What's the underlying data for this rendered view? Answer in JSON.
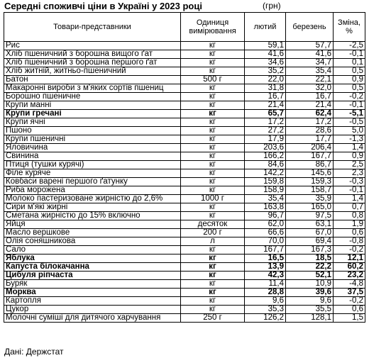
{
  "title": "Середні споживчі ціни в Україні у 2023 році",
  "unit": "(грн)",
  "headers": {
    "product": "Товари-представники",
    "unit": "Одиниця вимірювання",
    "jan": "лютий",
    "mar": "березень",
    "change": "Зміна, %"
  },
  "rows": [
    {
      "name": "Рис",
      "unit": "кг",
      "jan": "59,1",
      "mar": "57,7",
      "change": "-2,5",
      "bold": false
    },
    {
      "name": "Хліб пшеничний з борошна вищого ґат",
      "unit": "кг",
      "jan": "41,6",
      "mar": "41,6",
      "change": "-0,1",
      "bold": false
    },
    {
      "name": "Хліб пшеничний з борошна першого ґат",
      "unit": "кг",
      "jan": "34,6",
      "mar": "34,7",
      "change": "0,1",
      "bold": false
    },
    {
      "name": "Хліб житній, житньо-пшеничний",
      "unit": "кг",
      "jan": "35,2",
      "mar": "35,4",
      "change": "0,5",
      "bold": false
    },
    {
      "name": "Батон",
      "unit": "500 г",
      "jan": "22,0",
      "mar": "22,1",
      "change": "0,9",
      "bold": false
    },
    {
      "name": "Макаронні вироби з м'яких сортів пшениц",
      "unit": "кг",
      "jan": "31,8",
      "mar": "32,0",
      "change": "0,5",
      "bold": false
    },
    {
      "name": "Борошно пшеничне",
      "unit": "кг",
      "jan": "16,7",
      "mar": "16,7",
      "change": "-0,2",
      "bold": false
    },
    {
      "name": "Крупи манні",
      "unit": "кг",
      "jan": "21,4",
      "mar": "21,4",
      "change": "-0,1",
      "bold": false
    },
    {
      "name": "Крупи гречані",
      "unit": "кг",
      "jan": "65,7",
      "mar": "62,4",
      "change": "-5,1",
      "bold": true
    },
    {
      "name": "Крупи ячні",
      "unit": "кг",
      "jan": "17,2",
      "mar": "17,2",
      "change": "-0,5",
      "bold": false
    },
    {
      "name": "Пшоно",
      "unit": "кг",
      "jan": "27,2",
      "mar": "28,6",
      "change": "5,0",
      "bold": false
    },
    {
      "name": "Крупи пшеничні",
      "unit": "кг",
      "jan": "17,9",
      "mar": "17,7",
      "change": "-1,3",
      "bold": false
    },
    {
      "name": "Яловичина",
      "unit": "кг",
      "jan": "203,6",
      "mar": "206,4",
      "change": "1,4",
      "bold": false
    },
    {
      "name": "Свинина",
      "unit": "кг",
      "jan": "166,2",
      "mar": "167,7",
      "change": "0,9",
      "bold": false
    },
    {
      "name": "Птиця (тушки курячі)",
      "unit": "кг",
      "jan": "84,6",
      "mar": "86,7",
      "change": "2,5",
      "bold": false
    },
    {
      "name": "Філе куряче",
      "unit": "кг",
      "jan": "142,2",
      "mar": "145,6",
      "change": "2,3",
      "bold": false
    },
    {
      "name": "Ковбаси варені першого ґатунку",
      "unit": "кг",
      "jan": "159,8",
      "mar": "159,3",
      "change": "-0,3",
      "bold": false
    },
    {
      "name": "Риба морожена",
      "unit": "кг",
      "jan": "158,9",
      "mar": "158,7",
      "change": "-0,1",
      "bold": false
    },
    {
      "name": "Молоко пастеризоване жирністю до 2,6%",
      "unit": "1000 г",
      "jan": "35,4",
      "mar": "35,9",
      "change": "1,4",
      "bold": false
    },
    {
      "name": "Сири м'які жирні",
      "unit": "кг",
      "jan": "163,8",
      "mar": "165,0",
      "change": "0,7",
      "bold": false
    },
    {
      "name": "Сметана жирністю до 15% включно",
      "unit": "кг",
      "jan": "96,7",
      "mar": "97,5",
      "change": "0,8",
      "bold": false
    },
    {
      "name": "Яйця",
      "unit": "десяток",
      "jan": "62,0",
      "mar": "63,1",
      "change": "1,9",
      "bold": false
    },
    {
      "name": "Масло вершкове",
      "unit": "200 г",
      "jan": "66,6",
      "mar": "67,0",
      "change": "0,6",
      "bold": false
    },
    {
      "name": "Олія соняшникова",
      "unit": "л",
      "jan": "70,0",
      "mar": "69,4",
      "change": "-0,8",
      "bold": false
    },
    {
      "name": "Сало",
      "unit": "кг",
      "jan": "167,7",
      "mar": "167,3",
      "change": "-0,2",
      "bold": false
    },
    {
      "name": "Яблука",
      "unit": "кг",
      "jan": "16,5",
      "mar": "18,5",
      "change": "12,1",
      "bold": true
    },
    {
      "name": "Капуста білокачанна",
      "unit": "кг",
      "jan": "13,9",
      "mar": "22,2",
      "change": "60,2",
      "bold": true
    },
    {
      "name": "Цибуля ріпчаста",
      "unit": "кг",
      "jan": "42,3",
      "mar": "52,1",
      "change": "23,2",
      "bold": true
    },
    {
      "name": "Буряк",
      "unit": "кг",
      "jan": "11,4",
      "mar": "10,9",
      "change": "-4,8",
      "bold": false
    },
    {
      "name": "Морква",
      "unit": "кг",
      "jan": "28,8",
      "mar": "39,6",
      "change": "37,5",
      "bold": true
    },
    {
      "name": "Картопля",
      "unit": "кг",
      "jan": "9,6",
      "mar": "9,6",
      "change": "-0,2",
      "bold": false
    },
    {
      "name": "Цукор",
      "unit": "кг",
      "jan": "35,3",
      "mar": "35,5",
      "change": "0,6",
      "bold": false
    },
    {
      "name": "Молочні суміші для дитячого харчування",
      "unit": "250 г",
      "jan": "126,2",
      "mar": "128,1",
      "change": "1,5",
      "bold": false
    }
  ],
  "source": "Дані: Держстат"
}
